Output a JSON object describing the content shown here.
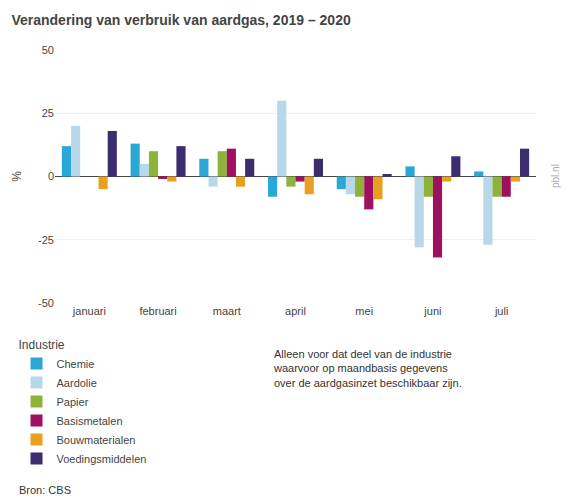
{
  "chart_data": {
    "type": "bar",
    "title": "Verandering van verbruik van aardgas, 2019 – 2020",
    "subtitle": "Industrie",
    "ylabel": "%",
    "categories": [
      "januari",
      "februari",
      "maart",
      "april",
      "mei",
      "juni",
      "juli"
    ],
    "series": [
      {
        "name": "Chemie",
        "color": "#29A8D8",
        "values": [
          12,
          13,
          7,
          -8,
          -5,
          4,
          2
        ]
      },
      {
        "name": "Aardolie",
        "color": "#B8D8EA",
        "values": [
          20,
          5,
          -4,
          30,
          -7,
          -28,
          -27
        ]
      },
      {
        "name": "Papier",
        "color": "#8DB33A",
        "values": [
          0,
          10,
          10,
          -4,
          -8,
          -8,
          -8
        ]
      },
      {
        "name": "Basismetalen",
        "color": "#A01060",
        "values": [
          0,
          -1,
          11,
          -2,
          -13,
          -32,
          -8
        ]
      },
      {
        "name": "Bouwmaterialen",
        "color": "#E8A020",
        "values": [
          -5,
          -2,
          -4,
          -7,
          -9,
          -2,
          -2
        ]
      },
      {
        "name": "Voedingsmiddelen",
        "color": "#3B2D6E",
        "values": [
          18,
          12,
          7,
          7,
          1,
          8,
          11
        ]
      }
    ],
    "ylim": [
      -50,
      50
    ],
    "yticks": [
      -50,
      -25,
      0,
      25,
      50
    ],
    "grid": true,
    "legend": "bottom",
    "annotations": [
      "Alleen voor dat deel van de industrie\nwaarvoor op maandbasis gegevens\nover de aardgasinzet beschikbaar zijn.",
      "Bron: CBS",
      "pbl.nl"
    ]
  }
}
